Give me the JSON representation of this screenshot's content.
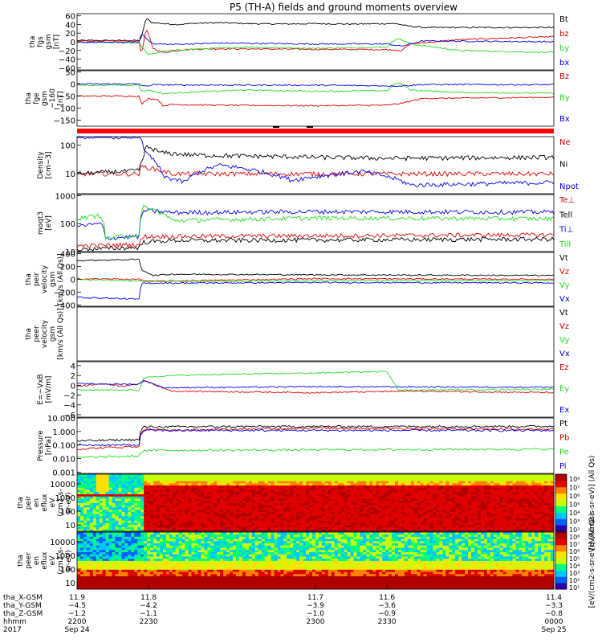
{
  "title": "P5 (TH-A) fields and ground moments overview",
  "colors": {
    "black": "#000000",
    "red": "#e00000",
    "green": "#22dd22",
    "blue": "#0000ee",
    "spectrogram_scale": [
      "#2a00a8",
      "#0060ff",
      "#00c8ff",
      "#00ff80",
      "#c8ff00",
      "#ffe000",
      "#ff8000",
      "#e00000",
      "#b00000"
    ]
  },
  "chart_data": [
    {
      "id": "fgs_gsm",
      "type": "line",
      "ylabel_lines": [
        "tha",
        "fgs",
        "gsm",
        "[nT]"
      ],
      "yticks": [
        "60",
        "40",
        "20",
        "0",
        "−20",
        "−40",
        "−60"
      ],
      "ylim": [
        -65,
        65
      ],
      "x_range": [
        2200,
        2400
      ],
      "series": [
        {
          "name": "Bt",
          "color": "black",
          "x": [
            2200,
            2226,
            2227,
            2229,
            2231,
            2236,
            2242,
            2250,
            2260,
            2272,
            2285,
            2300,
            2315,
            2330,
            2334,
            2338,
            2345,
            2400
          ],
          "values": [
            3,
            3,
            10,
            55,
            45,
            42,
            40,
            43,
            44,
            42,
            41,
            42,
            41,
            42,
            42,
            37,
            33,
            33
          ]
        },
        {
          "name": "bz",
          "color": "red",
          "x": [
            2200,
            2226,
            2227,
            2229,
            2232,
            2236,
            2245,
            2260,
            2290,
            2330,
            2336,
            2340,
            2360,
            2400
          ],
          "values": [
            2,
            2,
            -30,
            30,
            -15,
            -25,
            -18,
            -16,
            -17,
            -18,
            -20,
            -5,
            5,
            12
          ]
        },
        {
          "name": "by",
          "color": "green",
          "x": [
            2200,
            2226,
            2227,
            2230,
            2236,
            2245,
            2270,
            2300,
            2330,
            2334,
            2336,
            2340,
            2360,
            2400
          ],
          "values": [
            -2,
            -2,
            -10,
            -30,
            -22,
            -18,
            -12,
            -15,
            -12,
            8,
            5,
            -5,
            -20,
            -25
          ]
        },
        {
          "name": "bx",
          "color": "blue",
          "x": [
            2200,
            2226,
            2227,
            2229,
            2232,
            2240,
            2260,
            2300,
            2330,
            2336,
            2345,
            2400
          ],
          "values": [
            -1,
            -1,
            20,
            8,
            -5,
            -6,
            -3,
            -5,
            -5,
            -10,
            2,
            0
          ]
        }
      ]
    },
    {
      "id": "fge_gsm",
      "type": "line",
      "ylabel_lines": [
        "tha",
        "fge",
        "gsm",
        "−160",
        "[nT]"
      ],
      "yticks": [
        "50",
        "0",
        "−50",
        "−100",
        "−150"
      ],
      "ylim": [
        -175,
        55
      ],
      "x_range": [
        2200,
        2400
      ],
      "series": [
        {
          "name": "Bz",
          "color": "red",
          "x": [
            2200,
            2226,
            2227,
            2230,
            2234,
            2236,
            2240,
            2260,
            2300,
            2330,
            2336,
            2345,
            2400
          ],
          "values": [
            -50,
            -50,
            -85,
            -60,
            -65,
            -90,
            -85,
            -88,
            -90,
            -88,
            -80,
            -60,
            -55
          ]
        },
        {
          "name": "By",
          "color": "green",
          "x": [
            2200,
            2226,
            2227,
            2230,
            2236,
            2245,
            2270,
            2300,
            2330,
            2334,
            2336,
            2340,
            2360,
            2400
          ],
          "values": [
            -5,
            -5,
            -30,
            -25,
            -40,
            -35,
            -25,
            -30,
            -28,
            5,
            0,
            -25,
            -35,
            -38
          ]
        },
        {
          "name": "Bx",
          "color": "blue",
          "x": [
            2200,
            2226,
            2228,
            2232,
            2240,
            2300,
            2336,
            2345,
            2400
          ],
          "values": [
            0,
            0,
            -10,
            -3,
            -4,
            -5,
            -8,
            -2,
            -3
          ]
        }
      ]
    },
    {
      "id": "density",
      "type": "line",
      "ylabel_lines": [
        "Density",
        "[cm−3]"
      ],
      "yticks": [
        "100",
        "10"
      ],
      "ylog": true,
      "ylim": [
        2,
        200
      ],
      "x_range": [
        2200,
        2400
      ],
      "series": [
        {
          "name": "Ne",
          "color": "red",
          "x": [
            2200,
            2226,
            2227,
            2240,
            2400
          ],
          "values": [
            10,
            10,
            18,
            10,
            10
          ]
        },
        {
          "name": "Ni",
          "color": "black",
          "x": [
            2200,
            2226,
            2228,
            2229,
            2235,
            2250,
            2300,
            2330,
            2400
          ],
          "values": [
            10,
            13,
            40,
            90,
            55,
            45,
            38,
            35,
            38
          ]
        },
        {
          "name": "Npot",
          "color": "blue",
          "x": [
            2200,
            2205,
            2206,
            2226,
            2227,
            2228,
            2232,
            2236,
            2245,
            2260,
            2290,
            2320,
            2340,
            2400
          ],
          "values": [
            200,
            200,
            200,
            200,
            200,
            60,
            30,
            8,
            5,
            20,
            6,
            12,
            4,
            5
          ]
        }
      ]
    },
    {
      "id": "temperature",
      "type": "line",
      "ylabel_lines": [
        "moqt3",
        "[eV]"
      ],
      "yticks": [
        "1000",
        "100",
        "10"
      ],
      "ylog": true,
      "ylim": [
        10,
        1100
      ],
      "x_range": [
        2200,
        2400
      ],
      "series": [
        {
          "name": "Te⊥",
          "color": "red",
          "x": [
            2200,
            2226,
            2228,
            2400
          ],
          "values": [
            16,
            18,
            35,
            40
          ]
        },
        {
          "name": "Tell",
          "color": "black",
          "x": [
            2200,
            2226,
            2228,
            2240,
            2400
          ],
          "values": [
            12,
            14,
            22,
            25,
            28
          ]
        },
        {
          "name": "Ti⊥",
          "color": "blue",
          "x": [
            2200,
            2210,
            2212,
            2226,
            2228,
            2240,
            2300,
            2400
          ],
          "values": [
            80,
            100,
            30,
            35,
            300,
            250,
            270,
            260
          ]
        },
        {
          "name": "Till",
          "color": "green",
          "x": [
            2200,
            2210,
            2212,
            2226,
            2228,
            2240,
            2300,
            2400
          ],
          "values": [
            150,
            200,
            30,
            40,
            400,
            130,
            160,
            150
          ]
        }
      ]
    },
    {
      "id": "peir_velocity",
      "type": "line",
      "ylabel_lines": [
        "tha",
        "peir",
        "velocity",
        "gsm",
        "[km/s (All Qs)]"
      ],
      "yticks": [
        "400",
        "200",
        "0",
        "−200",
        "−400"
      ],
      "ylim": [
        -420,
        420
      ],
      "x_range": [
        2200,
        2400
      ],
      "series": [
        {
          "name": "Vt",
          "color": "black",
          "x": [
            2200,
            2226,
            2227,
            2232,
            2240,
            2300,
            2400
          ],
          "values": [
            290,
            310,
            150,
            60,
            80,
            70,
            60
          ]
        },
        {
          "name": "Vz",
          "color": "red",
          "x": [
            2200,
            2226,
            2228,
            2232,
            2300,
            2400
          ],
          "values": [
            10,
            0,
            -20,
            -30,
            10,
            0
          ]
        },
        {
          "name": "Vy",
          "color": "green",
          "x": [
            2200,
            2226,
            2228,
            2300,
            2400
          ],
          "values": [
            0,
            -30,
            -40,
            -20,
            -20
          ]
        },
        {
          "name": "Vx",
          "color": "blue",
          "x": [
            2200,
            2226,
            2227,
            2232,
            2300,
            2400
          ],
          "values": [
            -280,
            -310,
            -60,
            -60,
            -50,
            -55
          ]
        }
      ]
    },
    {
      "id": "peer_velocity",
      "type": "line",
      "ylabel_lines": [
        "tha",
        "peer",
        "velocity",
        "gsm",
        "[km/s (All Qs)]"
      ],
      "yticks": [],
      "ylim": [
        -420,
        420
      ],
      "x_range": [
        2200,
        2400
      ],
      "series": [
        {
          "name": "Vt",
          "color": "black",
          "x": [],
          "values": []
        },
        {
          "name": "Vz",
          "color": "red",
          "x": [],
          "values": []
        },
        {
          "name": "Vy",
          "color": "green",
          "x": [],
          "values": []
        },
        {
          "name": "Vx",
          "color": "blue",
          "x": [],
          "values": []
        }
      ]
    },
    {
      "id": "efield",
      "type": "line",
      "ylabel_lines": [
        "E=−VxB",
        "[mV/m]"
      ],
      "yticks": [
        "4",
        "2",
        "0",
        "−2",
        "−4",
        "−6"
      ],
      "ylim": [
        -6.5,
        4.8
      ],
      "x_range": [
        2200,
        2400
      ],
      "series": [
        {
          "name": "Ez",
          "color": "red",
          "x": [
            2200,
            2210,
            2220,
            2226,
            2228,
            2240,
            2300,
            2340,
            2400
          ],
          "values": [
            -0.3,
            0.3,
            -0.2,
            0.3,
            1,
            -1.2,
            -1.5,
            -1.2,
            -1.5
          ]
        },
        {
          "name": "Ey",
          "color": "green",
          "x": [
            2200,
            2226,
            2228,
            2240,
            2260,
            2300,
            2330,
            2335,
            2400
          ],
          "values": [
            -1,
            -1,
            1.5,
            2,
            2.2,
            2.5,
            2.8,
            -1,
            -0.8
          ]
        },
        {
          "name": "Ex",
          "color": "blue",
          "x": [
            2200,
            2226,
            2228,
            2236,
            2300,
            2400
          ],
          "values": [
            0.3,
            0.2,
            1,
            -0.5,
            -0.3,
            -0.4
          ]
        }
      ]
    },
    {
      "id": "pressure",
      "type": "line",
      "ylabel_lines": [
        "Pressure",
        "[nPa]"
      ],
      "yticks": [
        "10.000",
        "1.000",
        "0.100",
        "0.010",
        "0.001"
      ],
      "ylog": true,
      "ylim": [
        0.0008,
        10
      ],
      "x_range": [
        2200,
        2400
      ],
      "series": [
        {
          "name": "Pt",
          "color": "black",
          "x": [
            2200,
            2226,
            2228,
            2260,
            2400
          ],
          "values": [
            0.2,
            0.25,
            2.2,
            2.3,
            2.4
          ]
        },
        {
          "name": "Pb",
          "color": "red",
          "x": [
            2200,
            2226,
            2228,
            2240,
            2300,
            2400
          ],
          "values": [
            0.05,
            0.08,
            1.5,
            1.2,
            1.8,
            1.5
          ]
        },
        {
          "name": "Pe",
          "color": "green",
          "x": [
            2200,
            2226,
            2228,
            2400
          ],
          "values": [
            0.012,
            0.015,
            0.04,
            0.05
          ]
        },
        {
          "name": "Pi",
          "color": "blue",
          "x": [
            2200,
            2226,
            2228,
            2400
          ],
          "values": [
            0.1,
            0.1,
            1.2,
            1.2
          ]
        }
      ]
    },
    {
      "id": "peir_spectrogram",
      "type": "heatmap",
      "ylabel_lines": [
        "tha",
        "peir",
        "en",
        "eflux",
        "eV",
        "(cm2-s-",
        "sr-eV)"
      ],
      "yticks": [
        "10000",
        "1000",
        "100",
        "10"
      ],
      "ylog": true,
      "x_range": [
        2200,
        2400
      ],
      "colorbar_ticks": [
        "10⁸",
        "10⁷",
        "10⁶",
        "10⁵",
        "10⁴",
        "10³",
        "10²"
      ],
      "colorbar_label": "[eV/(cm2-s-sr-eV)] (All Qs)"
    },
    {
      "id": "peer_spectrogram",
      "type": "heatmap",
      "ylabel_lines": [
        "tha",
        "peer",
        "en",
        "eflux",
        "eV",
        "(cm2-s-",
        "sr-eV)"
      ],
      "yticks": [
        "10000",
        "1000",
        "100",
        "10"
      ],
      "ylog": true,
      "x_range": [
        2200,
        2400
      ],
      "colorbar_ticks": [
        "10⁸",
        "10⁷",
        "10⁶",
        "10⁵",
        "10⁴",
        "10³",
        "10²",
        "10¹"
      ],
      "colorbar_label": "[eV/(cm2-s-sr-eV)] (All Qs)"
    }
  ],
  "xaxis": {
    "row_labels": [
      "tha_X-GSM",
      "tha_Y-GSM",
      "tha_Z-GSM",
      "hhmm",
      "2017"
    ],
    "ticks": [
      {
        "x": 2200,
        "values": [
          "11.9",
          "−4.5",
          "−1.2",
          "2200",
          "Sep 24"
        ]
      },
      {
        "x": 2230,
        "values": [
          "11.8",
          "−4.2",
          "−1.1",
          "2230",
          ""
        ]
      },
      {
        "x": 2300,
        "values": [
          "11.7",
          "−3.9",
          "−1.0",
          "2300",
          ""
        ]
      },
      {
        "x": 2330,
        "values": [
          "11.6",
          "−3.6",
          "−0.9",
          "2330",
          ""
        ]
      },
      {
        "x": 2400,
        "values": [
          "11.4",
          "−3.3",
          "−0.8",
          "0000",
          "Sep 25"
        ]
      }
    ]
  }
}
